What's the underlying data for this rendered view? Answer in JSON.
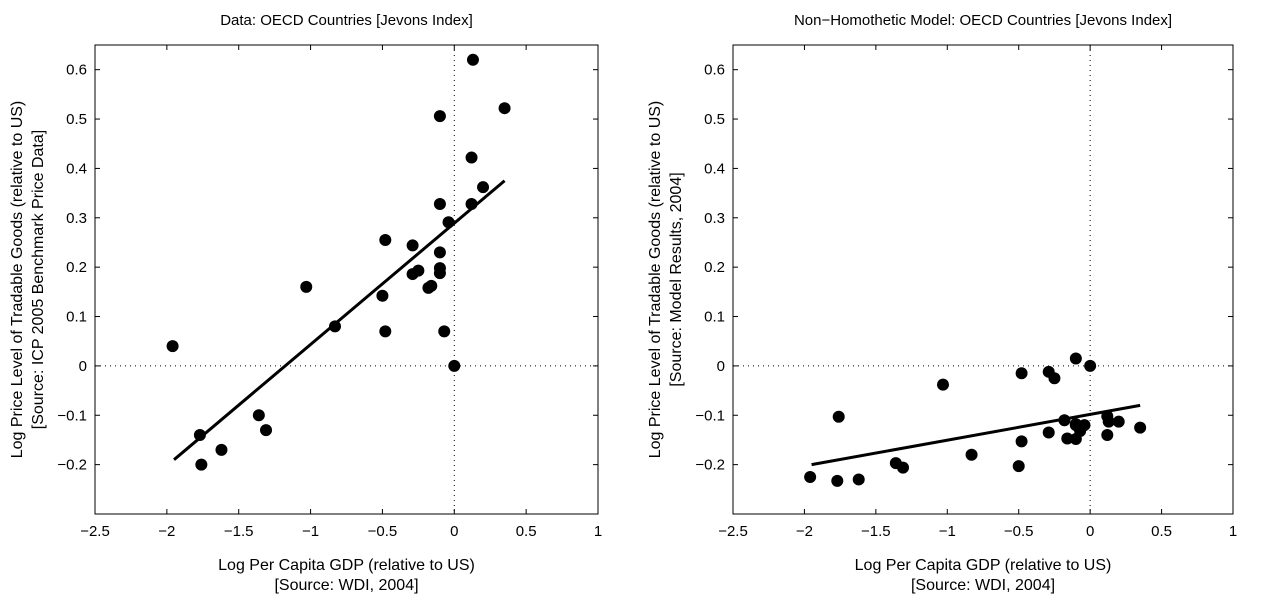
{
  "chart_data": [
    {
      "type": "scatter",
      "title": "Data: OECD Countries [Jevons Index]",
      "xlabel": [
        "Log Per Capita GDP (relative to US)",
        "[Source: WDI, 2004]"
      ],
      "ylabel": [
        "Log Price Level of Tradable Goods (relative to US)",
        "[Source: ICP 2005 Benchmark Price Data]"
      ],
      "xlim": [
        -2.5,
        1
      ],
      "ylim": [
        -0.3,
        0.65
      ],
      "xticks": [
        "−2.5",
        "−2",
        "−1.5",
        "−1",
        "−0.5",
        "0",
        "0.5",
        "1"
      ],
      "yticks": [
        "−0.2",
        "−0.1",
        "0",
        "0.1",
        "0.2",
        "0.3",
        "0.4",
        "0.5",
        "0.6"
      ],
      "reference_lines": {
        "x": 0,
        "y": 0,
        "style": "dotted"
      },
      "points": [
        {
          "x": -1.96,
          "y": 0.04
        },
        {
          "x": -1.77,
          "y": -0.14
        },
        {
          "x": -1.76,
          "y": -0.2
        },
        {
          "x": -1.62,
          "y": -0.17
        },
        {
          "x": -1.36,
          "y": -0.1
        },
        {
          "x": -1.31,
          "y": -0.13
        },
        {
          "x": -1.03,
          "y": 0.16
        },
        {
          "x": -0.83,
          "y": 0.08
        },
        {
          "x": -0.5,
          "y": 0.142
        },
        {
          "x": -0.48,
          "y": 0.255
        },
        {
          "x": -0.48,
          "y": 0.07
        },
        {
          "x": -0.29,
          "y": 0.244
        },
        {
          "x": -0.29,
          "y": 0.186
        },
        {
          "x": -0.25,
          "y": 0.193
        },
        {
          "x": -0.18,
          "y": 0.158
        },
        {
          "x": -0.16,
          "y": 0.162
        },
        {
          "x": -0.1,
          "y": 0.506
        },
        {
          "x": -0.1,
          "y": 0.328
        },
        {
          "x": -0.1,
          "y": 0.23
        },
        {
          "x": -0.1,
          "y": 0.198
        },
        {
          "x": -0.1,
          "y": 0.188
        },
        {
          "x": -0.07,
          "y": 0.07
        },
        {
          "x": -0.04,
          "y": 0.291
        },
        {
          "x": 0.0,
          "y": 0.0
        },
        {
          "x": 0.12,
          "y": 0.422
        },
        {
          "x": 0.12,
          "y": 0.328
        },
        {
          "x": 0.13,
          "y": 0.62
        },
        {
          "x": 0.2,
          "y": 0.362
        },
        {
          "x": 0.35,
          "y": 0.522
        }
      ],
      "fit_line": {
        "x": [
          -1.95,
          0.35
        ],
        "y": [
          -0.19,
          0.375
        ]
      }
    },
    {
      "type": "scatter",
      "title": "Non−Homothetic Model: OECD Countries [Jevons Index]",
      "xlabel": [
        "Log Per Capita GDP (relative to US)",
        "[Source: WDI, 2004]"
      ],
      "ylabel": [
        "Log Price Level of Tradable Goods (relative to US)",
        "[Source: Model Results, 2004]"
      ],
      "xlim": [
        -2.5,
        1
      ],
      "ylim": [
        -0.3,
        0.65
      ],
      "xticks": [
        "−2.5",
        "−2",
        "−1.5",
        "−1",
        "−0.5",
        "0",
        "0.5",
        "1"
      ],
      "yticks": [
        "−0.2",
        "−0.1",
        "0",
        "0.1",
        "0.2",
        "0.3",
        "0.4",
        "0.5",
        "0.6"
      ],
      "reference_lines": {
        "x": 0,
        "y": 0,
        "style": "dotted"
      },
      "points": [
        {
          "x": -1.96,
          "y": -0.225
        },
        {
          "x": -1.77,
          "y": -0.233
        },
        {
          "x": -1.76,
          "y": -0.103
        },
        {
          "x": -1.62,
          "y": -0.23
        },
        {
          "x": -1.36,
          "y": -0.197
        },
        {
          "x": -1.31,
          "y": -0.206
        },
        {
          "x": -1.03,
          "y": -0.038
        },
        {
          "x": -0.83,
          "y": -0.18
        },
        {
          "x": -0.5,
          "y": -0.203
        },
        {
          "x": -0.48,
          "y": -0.015
        },
        {
          "x": -0.48,
          "y": -0.153
        },
        {
          "x": -0.29,
          "y": -0.012
        },
        {
          "x": -0.29,
          "y": -0.135
        },
        {
          "x": -0.25,
          "y": -0.025
        },
        {
          "x": -0.18,
          "y": -0.11
        },
        {
          "x": -0.16,
          "y": -0.147
        },
        {
          "x": -0.1,
          "y": 0.015
        },
        {
          "x": -0.1,
          "y": -0.148
        },
        {
          "x": -0.1,
          "y": -0.12
        },
        {
          "x": -0.1,
          "y": -0.118
        },
        {
          "x": -0.07,
          "y": -0.132
        },
        {
          "x": -0.04,
          "y": -0.12
        },
        {
          "x": 0.0,
          "y": 0.0
        },
        {
          "x": 0.12,
          "y": -0.102
        },
        {
          "x": 0.12,
          "y": -0.14
        },
        {
          "x": 0.13,
          "y": -0.113
        },
        {
          "x": 0.2,
          "y": -0.113
        },
        {
          "x": 0.35,
          "y": -0.125
        }
      ],
      "fit_line": {
        "x": [
          -1.95,
          0.35
        ],
        "y": [
          -0.2,
          -0.08
        ]
      }
    }
  ]
}
